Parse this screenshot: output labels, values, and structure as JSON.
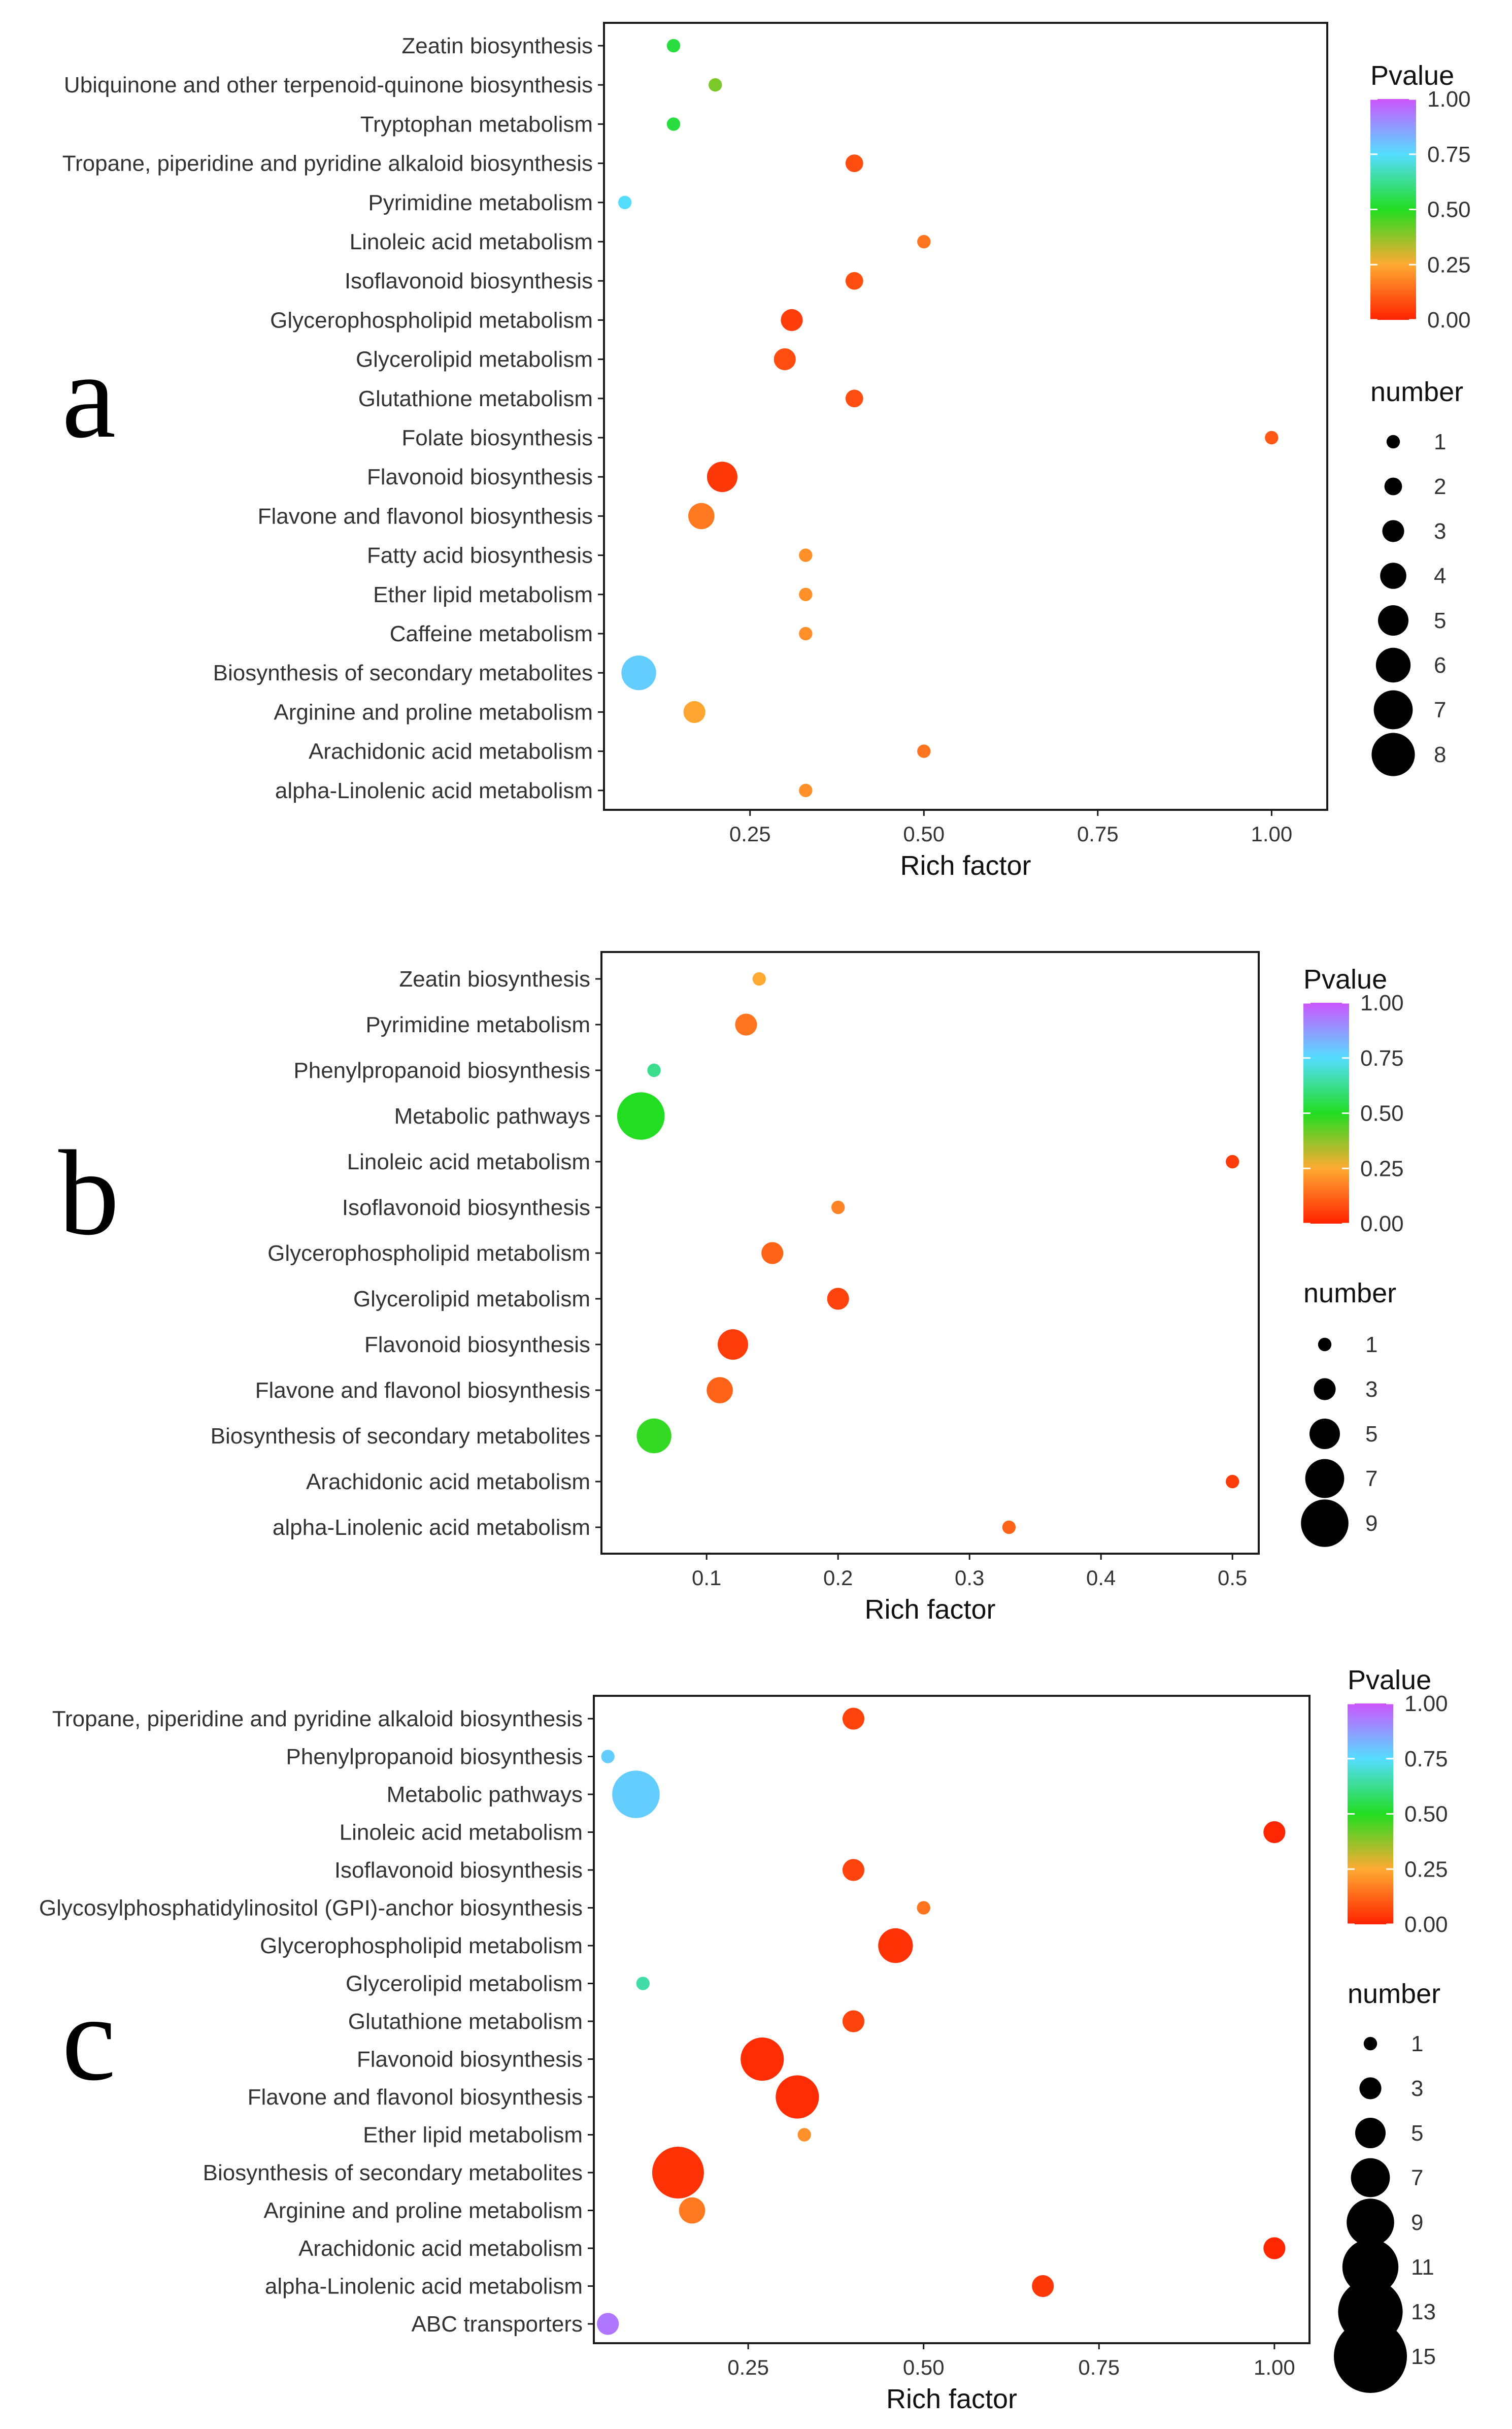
{
  "panel_letters": [
    "a",
    "b",
    "c"
  ],
  "legend": {
    "color_title": "Pvalue",
    "color_ticks": [
      "1.00",
      "0.75",
      "0.50",
      "0.25",
      "0.00"
    ],
    "size_title": "number"
  },
  "colors": {
    "gradient_top": "#cc55ff",
    "gradient_stops": [
      "#cc55ff",
      "#55ddff",
      "#22dd22",
      "#ffaa33",
      "#ff2200"
    ],
    "frame": "#1a1a1a",
    "text": "#333333"
  },
  "chart_data": [
    {
      "type": "scatter",
      "panel": "a",
      "xlabel": "Rich factor",
      "ylabel": "",
      "xlim": [
        0.04,
        1.08
      ],
      "xticks": [
        0.25,
        0.5,
        0.75,
        1.0
      ],
      "xtick_labels": [
        "0.25",
        "0.50",
        "0.75",
        "1.00"
      ],
      "size_legend": [
        1,
        2,
        3,
        4,
        5,
        6,
        7,
        8
      ],
      "categories": [
        "Zeatin biosynthesis",
        "Ubiquinone and other terpenoid-quinone biosynthesis",
        "Tryptophan metabolism",
        "Tropane, piperidine and pyridine alkaloid biosynthesis",
        "Pyrimidine metabolism",
        "Linoleic acid metabolism",
        "Isoflavonoid biosynthesis",
        "Glycerophospholipid metabolism",
        "Glycerolipid metabolism",
        "Glutathione metabolism",
        "Folate biosynthesis",
        "Flavonoid biosynthesis",
        "Flavone and flavonol biosynthesis",
        "Fatty acid biosynthesis",
        "Ether lipid metabolism",
        "Caffeine metabolism",
        "Biosynthesis of secondary metabolites",
        "Arginine and proline metabolism",
        "Arachidonic acid metabolism",
        "alpha-Linolenic acid metabolism"
      ],
      "rich_factor": [
        0.14,
        0.2,
        0.14,
        0.4,
        0.07,
        0.5,
        0.4,
        0.31,
        0.3,
        0.4,
        1.0,
        0.21,
        0.18,
        0.33,
        0.33,
        0.33,
        0.09,
        0.17,
        0.5,
        0.33
      ],
      "number": [
        1,
        1,
        1,
        2,
        1,
        1,
        2,
        3,
        3,
        2,
        1,
        5,
        4,
        1,
        1,
        1,
        6,
        3,
        1,
        1
      ],
      "pvalue": [
        0.53,
        0.4,
        0.53,
        0.08,
        0.75,
        0.15,
        0.08,
        0.05,
        0.08,
        0.08,
        0.1,
        0.04,
        0.16,
        0.2,
        0.2,
        0.2,
        0.78,
        0.24,
        0.15,
        0.2
      ]
    },
    {
      "type": "scatter",
      "panel": "b",
      "xlabel": "Rich factor",
      "ylabel": "",
      "xlim": [
        0.02,
        0.52
      ],
      "xticks": [
        0.1,
        0.2,
        0.3,
        0.4,
        0.5
      ],
      "xtick_labels": [
        "0.1",
        "0.2",
        "0.3",
        "0.4",
        "0.5"
      ],
      "size_legend": [
        1,
        3,
        5,
        7,
        9
      ],
      "categories": [
        "Zeatin biosynthesis",
        "Pyrimidine metabolism",
        "Phenylpropanoid biosynthesis",
        "Metabolic pathways",
        "Linoleic acid metabolism",
        "Isoflavonoid biosynthesis",
        "Glycerophospholipid metabolism",
        "Glycerolipid metabolism",
        "Flavonoid biosynthesis",
        "Flavone and flavonol biosynthesis",
        "Biosynthesis of secondary metabolites",
        "Arachidonic acid metabolism",
        "alpha-Linolenic acid metabolism"
      ],
      "rich_factor": [
        0.14,
        0.13,
        0.06,
        0.05,
        0.5,
        0.2,
        0.15,
        0.2,
        0.12,
        0.11,
        0.06,
        0.5,
        0.33
      ],
      "number": [
        1,
        3,
        1,
        9,
        1,
        1,
        3,
        3,
        5,
        4,
        6,
        1,
        1
      ],
      "pvalue": [
        0.25,
        0.15,
        0.62,
        0.5,
        0.05,
        0.18,
        0.12,
        0.06,
        0.05,
        0.12,
        0.48,
        0.05,
        0.12
      ]
    },
    {
      "type": "scatter",
      "panel": "c",
      "xlabel": "Rich factor",
      "ylabel": "",
      "xlim": [
        0.03,
        1.05
      ],
      "xticks": [
        0.25,
        0.5,
        0.75,
        1.0
      ],
      "xtick_labels": [
        "0.25",
        "0.50",
        "0.75",
        "1.00"
      ],
      "size_legend": [
        1,
        3,
        5,
        7,
        9,
        11,
        13,
        15
      ],
      "categories": [
        "Tropane, piperidine and pyridine alkaloid biosynthesis",
        "Phenylpropanoid biosynthesis",
        "Metabolic pathways",
        "Linoleic acid metabolism",
        "Isoflavonoid biosynthesis",
        "Glycosylphosphatidylinositol (GPI)-anchor biosynthesis",
        "Glycerophospholipid metabolism",
        "Glycerolipid metabolism",
        "Glutathione metabolism",
        "Flavonoid biosynthesis",
        "Flavone and flavonol biosynthesis",
        "Ether lipid metabolism",
        "Biosynthesis of secondary metabolites",
        "Arginine and proline metabolism",
        "Arachidonic acid metabolism",
        "alpha-Linolenic acid metabolism",
        "ABC transporters"
      ],
      "rich_factor": [
        0.4,
        0.05,
        0.09,
        1.0,
        0.4,
        0.5,
        0.46,
        0.1,
        0.4,
        0.27,
        0.32,
        0.33,
        0.15,
        0.17,
        1.0,
        0.67,
        0.05
      ],
      "number": [
        3,
        1,
        9,
        3,
        3,
        1,
        6,
        1,
        3,
        8,
        8,
        1,
        10,
        4,
        3,
        3,
        3
      ],
      "pvalue": [
        0.06,
        0.78,
        0.78,
        0.01,
        0.06,
        0.15,
        0.03,
        0.65,
        0.06,
        0.02,
        0.02,
        0.2,
        0.03,
        0.16,
        0.01,
        0.04,
        0.94
      ]
    }
  ]
}
